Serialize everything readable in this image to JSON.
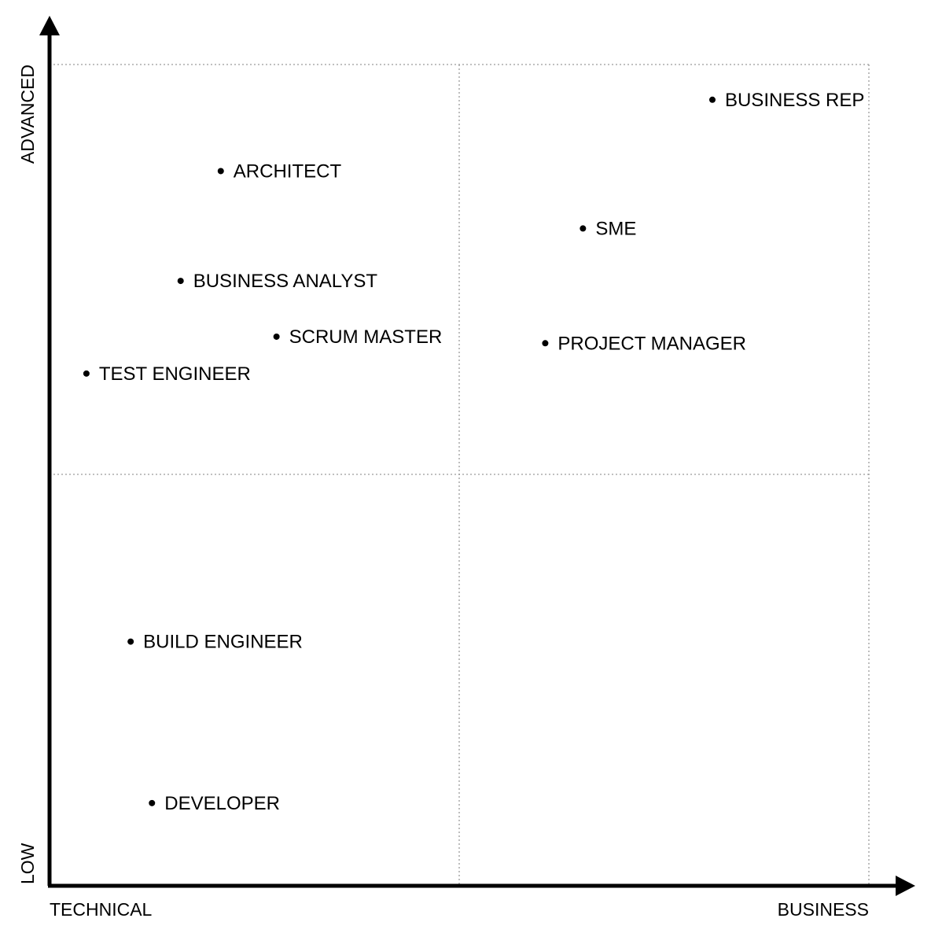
{
  "chart_data": {
    "type": "scatter",
    "title": "",
    "xlabel": "",
    "ylabel": "",
    "x_axis_words": {
      "start": "TECHNICAL",
      "end": "BUSINESS"
    },
    "y_axis_words": {
      "start": "LOW",
      "end": "ADVANCED"
    },
    "xlim": [
      0,
      100
    ],
    "ylim": [
      0,
      100
    ],
    "grid": true,
    "quadrant_dividers": {
      "x": 50,
      "y": 50
    },
    "points": [
      {
        "label": "BUSINESS REP",
        "x": 80.9,
        "y": 95.7
      },
      {
        "label": "ARCHITECT",
        "x": 20.9,
        "y": 87.0
      },
      {
        "label": "SME",
        "x": 65.1,
        "y": 80.0
      },
      {
        "label": "BUSINESS ANALYST",
        "x": 16.0,
        "y": 73.6
      },
      {
        "label": "SCRUM MASTER",
        "x": 27.7,
        "y": 66.8
      },
      {
        "label": "PROJECT MANAGER",
        "x": 60.5,
        "y": 66.0
      },
      {
        "label": "TEST ENGINEER",
        "x": 4.5,
        "y": 62.3
      },
      {
        "label": "BUILD ENGINEER",
        "x": 9.9,
        "y": 29.6
      },
      {
        "label": "DEVELOPER",
        "x": 12.5,
        "y": 9.9
      }
    ]
  }
}
